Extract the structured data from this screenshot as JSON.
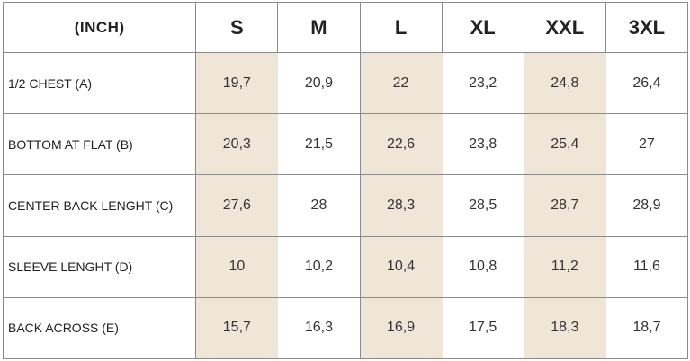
{
  "table": {
    "unit_label": "(INCH)",
    "sizes": [
      "S",
      "M",
      "L",
      "XL",
      "XXL",
      "3XL"
    ],
    "shaded_columns": [
      "S",
      "L",
      "XXL"
    ],
    "shade_color": "#efe6d8",
    "rows": [
      {
        "label": "1/2 CHEST (A)",
        "values": [
          "19,7",
          "20,9",
          "22",
          "23,2",
          "24,8",
          "26,4"
        ]
      },
      {
        "label": "BOTTOM AT FLAT (B)",
        "values": [
          "20,3",
          "21,5",
          "22,6",
          "23,8",
          "25,4",
          "27"
        ]
      },
      {
        "label": "CENTER BACK LENGHT (C)",
        "values": [
          "27,6",
          "28",
          "28,3",
          "28,5",
          "28,7",
          "28,9"
        ]
      },
      {
        "label": "SLEEVE LENGHT (D)",
        "values": [
          "10",
          "10,2",
          "10,4",
          "10,8",
          "11,2",
          "11,6"
        ]
      },
      {
        "label": "BACK ACROSS (E)",
        "values": [
          "15,7",
          "16,3",
          "16,9",
          "17,5",
          "18,3",
          "18,7"
        ]
      }
    ]
  }
}
